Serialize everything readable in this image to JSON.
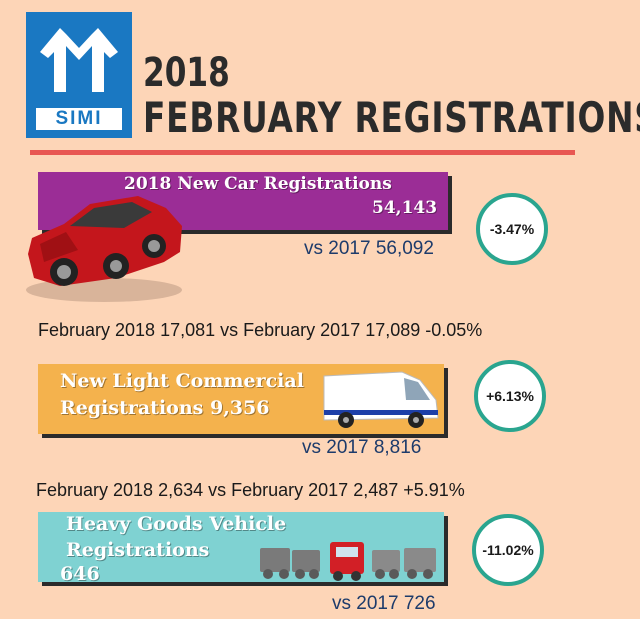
{
  "logo": {
    "text": "SIMI",
    "colors": {
      "brand": "#1a78c2"
    }
  },
  "title": {
    "year": "2018",
    "main": "FEBRUARY REGISTRATIONS"
  },
  "colors": {
    "background": "#fdd5b7",
    "rule": "#e85752",
    "car_banner": "#9b2d96",
    "lcv_banner": "#f4b24d",
    "hgv_banner": "#7fd2d2",
    "badge_ring": "#2aa58f"
  },
  "car": {
    "title": "2018 New Car Registrations",
    "value": "54,143",
    "vs": "vs 2017 56,092",
    "change": "-3.47%",
    "icon": "red-car-icon"
  },
  "note_car": "February 2018 17,081 vs February 2017 17,089 -0.05%",
  "lcv": {
    "line1": "New Light Commercial",
    "line2": "Registrations 9,356",
    "vs": "vs 2017 8,816",
    "change": "+6.13%",
    "icon": "white-van-icon"
  },
  "note_lcv": "February 2018 2,634 vs February 2017 2,487 +5.91%",
  "hgv": {
    "line1": "Heavy Goods Vehicle",
    "line2": "Registrations",
    "line3": "646",
    "vs": "vs 2017 726",
    "change": "-11.02%",
    "icon": "truck-fleet-icon"
  }
}
